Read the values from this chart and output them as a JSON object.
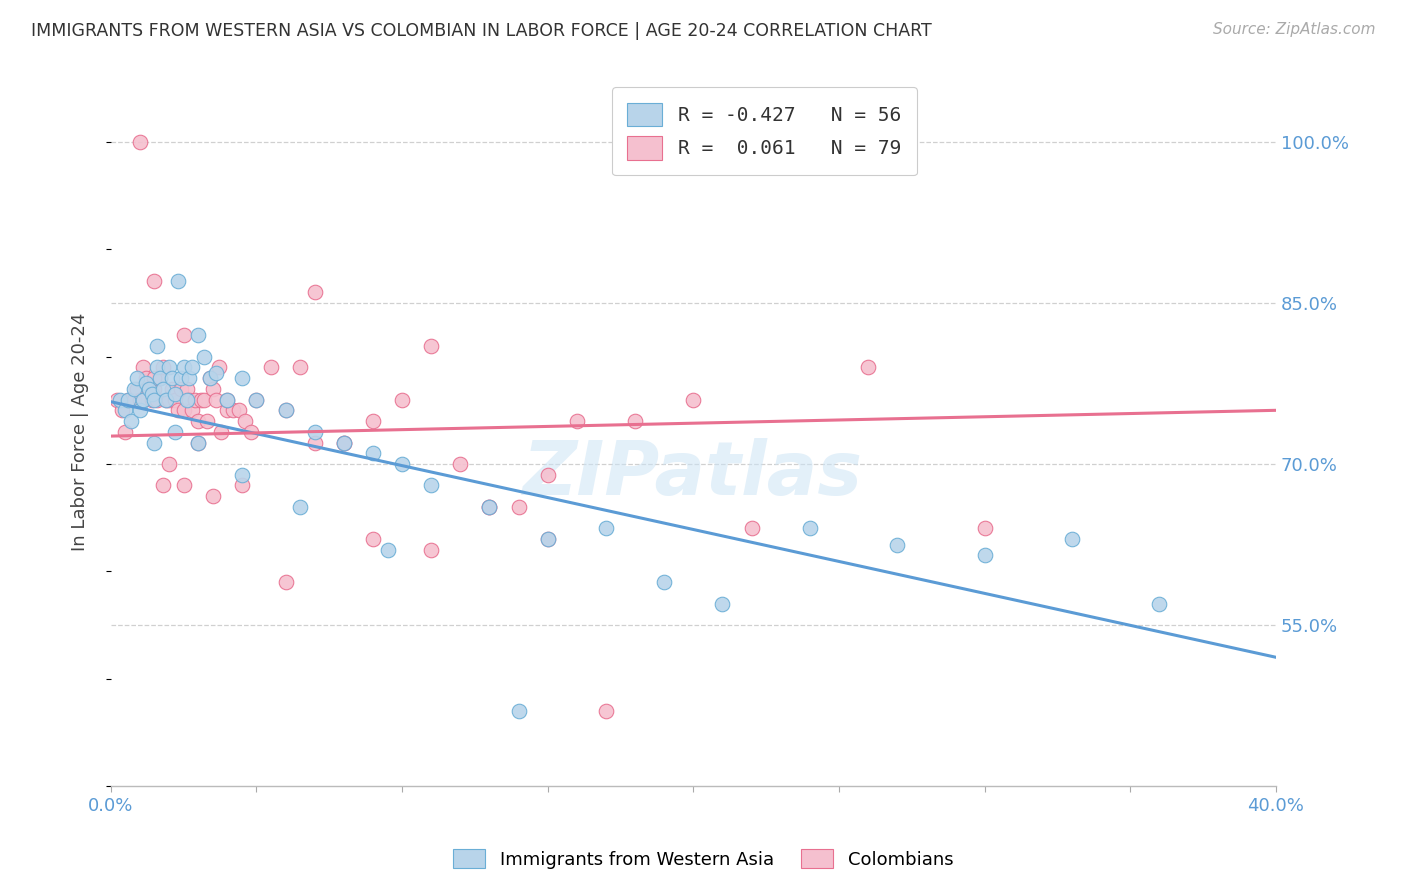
{
  "title": "IMMIGRANTS FROM WESTERN ASIA VS COLOMBIAN IN LABOR FORCE | AGE 20-24 CORRELATION CHART",
  "source": "Source: ZipAtlas.com",
  "ylabel": "In Labor Force | Age 20-24",
  "xlim": [
    0.0,
    0.4
  ],
  "ylim": [
    0.4,
    1.06
  ],
  "xticks": [
    0.0,
    0.05,
    0.1,
    0.15,
    0.2,
    0.25,
    0.3,
    0.35,
    0.4
  ],
  "yticks_right": [
    0.55,
    0.7,
    0.85,
    1.0
  ],
  "ytick_right_labels": [
    "55.0%",
    "70.0%",
    "85.0%",
    "100.0%"
  ],
  "blue_color": "#b8d4ea",
  "pink_color": "#f5c0cf",
  "blue_edge_color": "#6aaed6",
  "pink_edge_color": "#e87090",
  "blue_line_color": "#5b9bd5",
  "pink_line_color": "#e87090",
  "legend_blue_R": "-0.427",
  "legend_blue_N": "56",
  "legend_pink_R": " 0.061",
  "legend_pink_N": "79",
  "watermark": "ZIPatlas",
  "blue_scatter_x": [
    0.003,
    0.005,
    0.006,
    0.007,
    0.008,
    0.009,
    0.01,
    0.011,
    0.012,
    0.013,
    0.014,
    0.015,
    0.016,
    0.016,
    0.017,
    0.018,
    0.019,
    0.02,
    0.021,
    0.022,
    0.023,
    0.024,
    0.025,
    0.026,
    0.027,
    0.028,
    0.03,
    0.032,
    0.034,
    0.036,
    0.04,
    0.045,
    0.05,
    0.06,
    0.07,
    0.08,
    0.09,
    0.1,
    0.11,
    0.13,
    0.15,
    0.17,
    0.19,
    0.21,
    0.24,
    0.27,
    0.3,
    0.33,
    0.36,
    0.015,
    0.022,
    0.03,
    0.045,
    0.065,
    0.095,
    0.14
  ],
  "blue_scatter_y": [
    0.76,
    0.75,
    0.76,
    0.74,
    0.77,
    0.78,
    0.75,
    0.76,
    0.775,
    0.77,
    0.765,
    0.76,
    0.79,
    0.81,
    0.78,
    0.77,
    0.76,
    0.79,
    0.78,
    0.765,
    0.87,
    0.78,
    0.79,
    0.76,
    0.78,
    0.79,
    0.82,
    0.8,
    0.78,
    0.785,
    0.76,
    0.78,
    0.76,
    0.75,
    0.73,
    0.72,
    0.71,
    0.7,
    0.68,
    0.66,
    0.63,
    0.64,
    0.59,
    0.57,
    0.64,
    0.625,
    0.615,
    0.63,
    0.57,
    0.72,
    0.73,
    0.72,
    0.69,
    0.66,
    0.62,
    0.47
  ],
  "pink_scatter_x": [
    0.002,
    0.004,
    0.005,
    0.006,
    0.007,
    0.008,
    0.009,
    0.01,
    0.011,
    0.012,
    0.013,
    0.014,
    0.015,
    0.016,
    0.017,
    0.018,
    0.019,
    0.02,
    0.021,
    0.022,
    0.023,
    0.024,
    0.025,
    0.026,
    0.027,
    0.028,
    0.029,
    0.03,
    0.031,
    0.032,
    0.033,
    0.034,
    0.035,
    0.036,
    0.037,
    0.038,
    0.04,
    0.042,
    0.044,
    0.046,
    0.048,
    0.05,
    0.055,
    0.06,
    0.065,
    0.07,
    0.08,
    0.09,
    0.1,
    0.11,
    0.12,
    0.13,
    0.14,
    0.15,
    0.16,
    0.18,
    0.2,
    0.22,
    0.26,
    0.3,
    0.025,
    0.015,
    0.035,
    0.06,
    0.09,
    0.13,
    0.17,
    0.045,
    0.025,
    0.08,
    0.02,
    0.03,
    0.018,
    0.015,
    0.01,
    0.04,
    0.07,
    0.11,
    0.15
  ],
  "pink_scatter_y": [
    0.76,
    0.75,
    0.73,
    0.76,
    0.76,
    0.76,
    0.77,
    0.76,
    0.79,
    0.78,
    0.77,
    0.76,
    0.77,
    0.76,
    0.78,
    0.79,
    0.76,
    0.76,
    0.77,
    0.76,
    0.75,
    0.77,
    0.75,
    0.77,
    0.76,
    0.75,
    0.76,
    0.74,
    0.76,
    0.76,
    0.74,
    0.78,
    0.77,
    0.76,
    0.79,
    0.73,
    0.75,
    0.75,
    0.75,
    0.74,
    0.73,
    0.76,
    0.79,
    0.75,
    0.79,
    0.72,
    0.72,
    0.74,
    0.76,
    0.81,
    0.7,
    0.66,
    0.66,
    0.69,
    0.74,
    0.74,
    0.76,
    0.64,
    0.79,
    0.64,
    0.68,
    0.87,
    0.67,
    0.59,
    0.63,
    0.66,
    0.47,
    0.68,
    0.82,
    0.72,
    0.7,
    0.72,
    0.68,
    0.78,
    1.0,
    0.76,
    0.86,
    0.62,
    0.63
  ],
  "blue_trend_x": [
    0.0,
    0.4
  ],
  "blue_trend_y": [
    0.758,
    0.52
  ],
  "pink_trend_x": [
    0.0,
    0.4
  ],
  "pink_trend_y": [
    0.726,
    0.75
  ]
}
